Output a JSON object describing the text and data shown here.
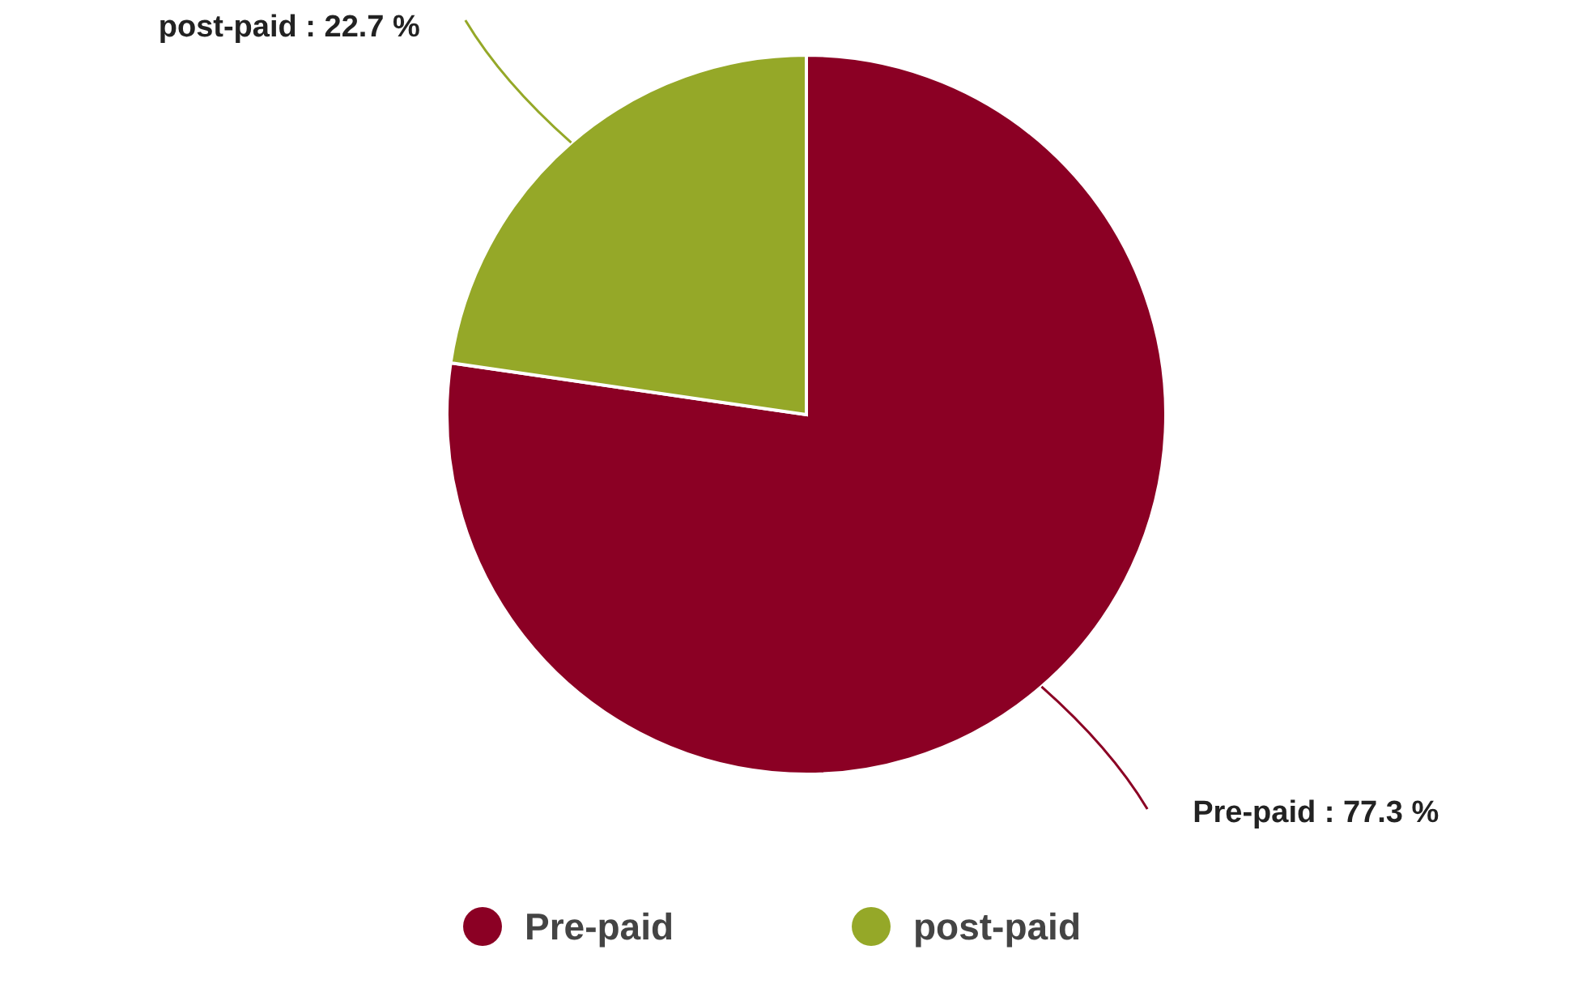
{
  "chart_data": {
    "type": "pie",
    "categories": [
      "Pre-paid",
      "post-paid"
    ],
    "values": [
      77.3,
      22.7
    ],
    "colors": [
      "#8b0024",
      "#95a828"
    ],
    "value_labels": [
      "Pre-paid : 77.3 %",
      "post-paid : 22.7 %"
    ],
    "legend": "bottom"
  }
}
